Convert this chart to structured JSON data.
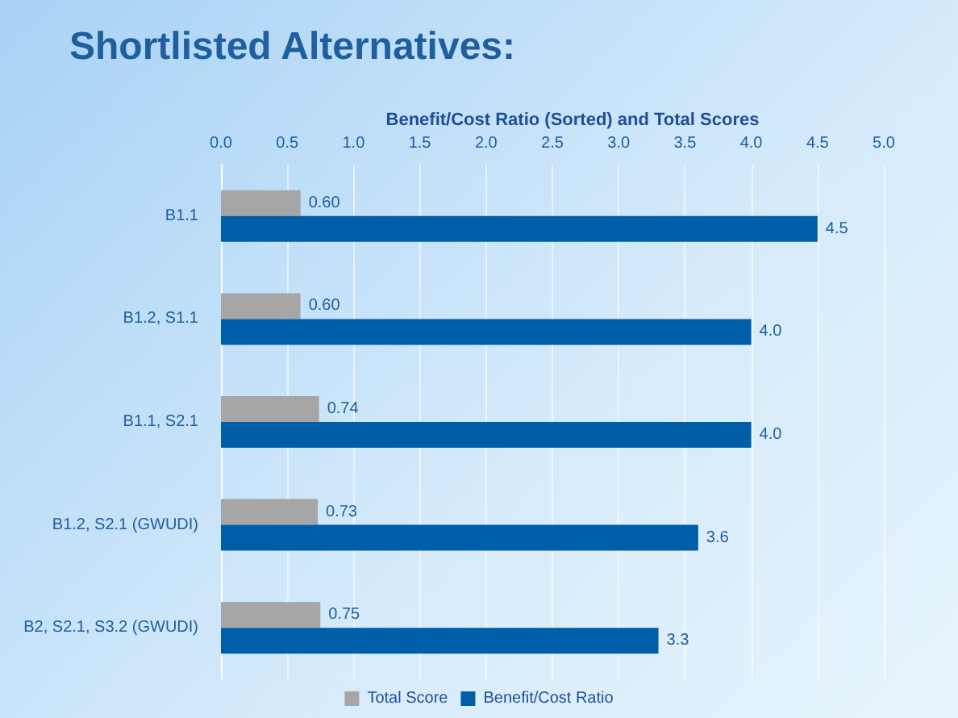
{
  "chart_data": {
    "type": "bar",
    "orientation": "horizontal",
    "title": "Shortlisted Alternatives:",
    "subtitle": "Benefit/Cost Ratio (Sorted) and Total Scores",
    "categories": [
      "B1.1",
      "B1.2, S1.1",
      "B1.1, S2.1",
      "B1.2, S2.1 (GWUDI)",
      "B2, S2.1, S3.2 (GWUDI)"
    ],
    "series": [
      {
        "name": "Total Score",
        "color": "#a6a6a6",
        "values": [
          0.6,
          0.6,
          0.74,
          0.73,
          0.75
        ],
        "value_labels": [
          "0.60",
          "0.60",
          "0.74",
          "0.73",
          "0.75"
        ]
      },
      {
        "name": "Benefit/Cost Ratio",
        "color": "#005ea8",
        "values": [
          4.5,
          4.0,
          4.0,
          3.6,
          3.3
        ],
        "value_labels": [
          "4.5",
          "4.0",
          "4.0",
          "3.6",
          "3.3"
        ]
      }
    ],
    "xlim": [
      0,
      5
    ],
    "xticks": [
      "0.0",
      "0.5",
      "1.0",
      "1.5",
      "2.0",
      "2.5",
      "3.0",
      "3.5",
      "4.0",
      "4.5",
      "5.0"
    ],
    "grid": "x",
    "legend": "bottom"
  }
}
